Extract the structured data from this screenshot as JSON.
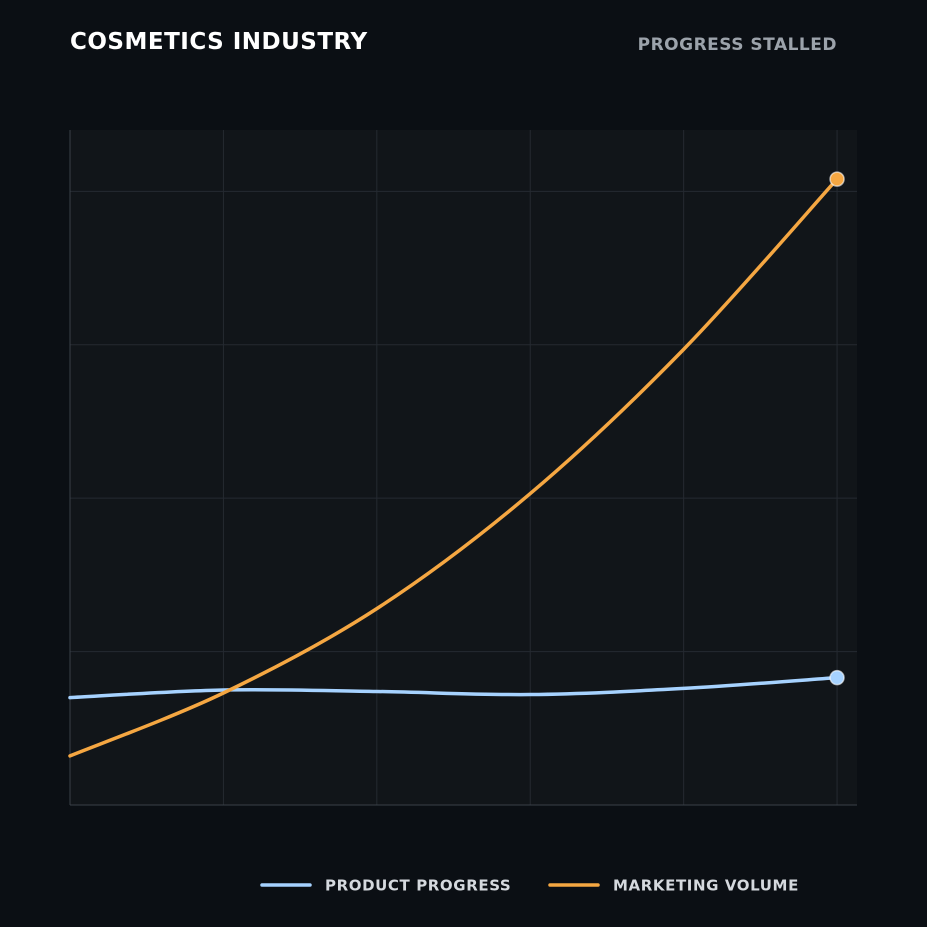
{
  "header": {
    "title": "COSMETICS INDUSTRY",
    "subtitle": "PROGRESS STALLED"
  },
  "chart_data": {
    "type": "line",
    "title": "COSMETICS INDUSTRY",
    "subtitle": "PROGRESS STALLED",
    "xlabel": "",
    "ylabel": "",
    "x": [
      0,
      1,
      2,
      3,
      4,
      5
    ],
    "xlim": [
      0,
      5.13
    ],
    "ylim": [
      0,
      4.4
    ],
    "grid": true,
    "legend_position": "bottom",
    "series": [
      {
        "name": "PRODUCT PROGRESS",
        "color": "#a6d2ff",
        "values": [
          0.7,
          0.75,
          0.74,
          0.72,
          0.76,
          0.83
        ]
      },
      {
        "name": "MARKETING VOLUME",
        "color": "#f5a742",
        "values": [
          0.32,
          0.73,
          1.28,
          2.03,
          2.97,
          4.08
        ]
      }
    ]
  }
}
